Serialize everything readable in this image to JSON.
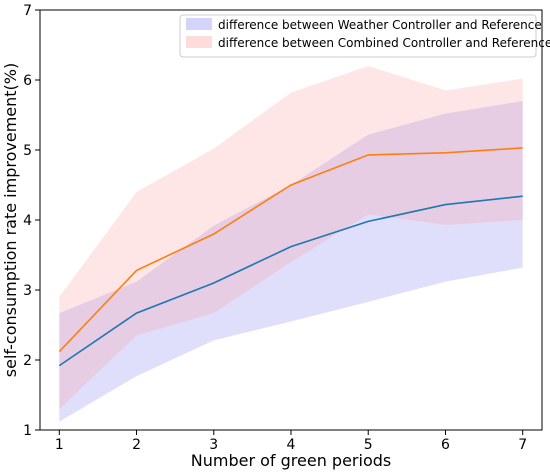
{
  "chart_data": {
    "type": "line",
    "title": "",
    "xlabel": "Number of green periods",
    "ylabel": "self-consumption rate improvement(%)",
    "x": [
      1,
      2,
      3,
      4,
      5,
      6,
      7
    ],
    "xlim": [
      0.75,
      7.25
    ],
    "ylim": [
      1,
      7
    ],
    "yticks": [
      1,
      2,
      3,
      4,
      5,
      6,
      7
    ],
    "grid": false,
    "legend_position": "top-right",
    "series": [
      {
        "name": "difference between Weather Controller and Reference",
        "line_color": "#1f77b4",
        "band_color": "#6f6ff0",
        "values": [
          1.92,
          2.67,
          3.1,
          3.62,
          3.98,
          4.22,
          4.34
        ],
        "lower": [
          1.12,
          1.77,
          2.28,
          2.55,
          2.83,
          3.12,
          3.32
        ],
        "upper": [
          2.67,
          3.12,
          3.92,
          4.5,
          5.22,
          5.52,
          5.7
        ]
      },
      {
        "name": "difference between Combined Controller and Reference",
        "line_color": "#ff7f0e",
        "band_color": "#ff8c8c",
        "values": [
          2.12,
          3.28,
          3.8,
          4.5,
          4.93,
          4.96,
          5.03
        ],
        "lower": [
          1.3,
          2.35,
          2.67,
          3.4,
          4.08,
          3.93,
          4.0
        ],
        "upper": [
          2.9,
          4.4,
          5.02,
          5.82,
          6.2,
          5.85,
          6.02
        ]
      }
    ]
  }
}
